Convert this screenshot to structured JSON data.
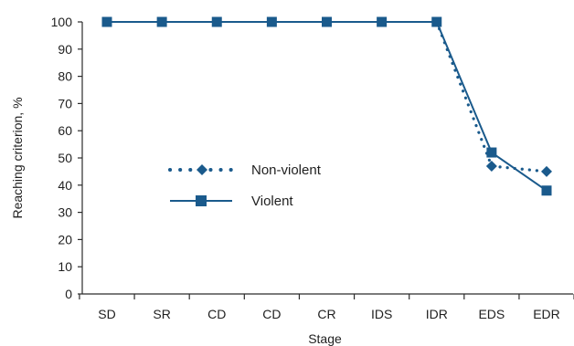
{
  "chart_data": {
    "type": "line",
    "categories": [
      "SD",
      "SR",
      "CD",
      "CD",
      "CR",
      "IDS",
      "IDR",
      "EDS",
      "EDR"
    ],
    "ylim": [
      0,
      100
    ],
    "yticks": [
      "0",
      "10",
      "20",
      "30",
      "40",
      "50",
      "60",
      "70",
      "80",
      "90",
      "100"
    ],
    "xlabel": "Stage",
    "ylabel": "Reaching criterion, %",
    "grid": false,
    "legend_position": "center-left",
    "series": [
      {
        "name": "Violent",
        "values": [
          100,
          100,
          100,
          100,
          100,
          100,
          100,
          52,
          38
        ],
        "marker": "square",
        "line_style": "solid",
        "color": "#1a5a8c"
      },
      {
        "name": "Non-violent",
        "values": [
          null,
          null,
          null,
          null,
          null,
          null,
          null,
          47,
          45
        ],
        "marker": "diamond",
        "line_style": "dotted",
        "color": "#1a5a8c"
      }
    ]
  }
}
